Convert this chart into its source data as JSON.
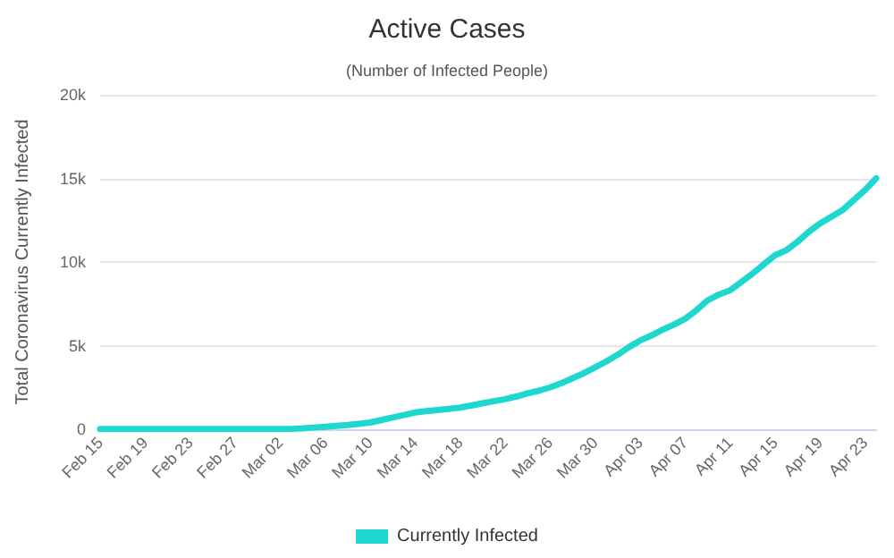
{
  "chart_data": {
    "type": "line",
    "title": "Active Cases",
    "subtitle": "(Number of Infected People)",
    "ylabel": "Total Coronavirus Currently Infected",
    "categories": [
      "Feb 15",
      null,
      null,
      null,
      "Feb 19",
      null,
      null,
      null,
      "Feb 23",
      null,
      null,
      null,
      "Feb 27",
      null,
      null,
      null,
      "Mar 02",
      null,
      null,
      null,
      "Mar 06",
      null,
      null,
      null,
      "Mar 10",
      null,
      null,
      null,
      "Mar 14",
      null,
      null,
      null,
      "Mar 18",
      null,
      null,
      null,
      "Mar 22",
      null,
      null,
      null,
      "Mar 26",
      null,
      null,
      null,
      "Mar 30",
      null,
      null,
      null,
      "Apr 03",
      null,
      null,
      null,
      "Apr 07",
      null,
      null,
      null,
      "Apr 11",
      null,
      null,
      null,
      "Apr 15",
      null,
      null,
      null,
      "Apr 19",
      null,
      null,
      null,
      "Apr 23",
      null
    ],
    "series": [
      {
        "name": "Currently Infected",
        "color": "#1ed8d0",
        "values": [
          10,
          10,
          10,
          10,
          10,
          10,
          10,
          10,
          10,
          10,
          20,
          20,
          20,
          20,
          20,
          20,
          20,
          20,
          50,
          100,
          150,
          200,
          250,
          320,
          400,
          550,
          700,
          850,
          1000,
          1080,
          1150,
          1220,
          1300,
          1420,
          1550,
          1680,
          1800,
          1950,
          2150,
          2300,
          2500,
          2750,
          3050,
          3350,
          3700,
          4050,
          4450,
          4900,
          5300,
          5600,
          5950,
          6250,
          6600,
          7100,
          7700,
          8050,
          8300,
          8800,
          9300,
          9850,
          10400,
          10700,
          11200,
          11800,
          12300,
          12700,
          13100,
          13700,
          14300,
          15000
        ]
      }
    ],
    "ylim": [
      0,
      20000
    ],
    "yticks": [
      0,
      {
        "value": 5000,
        "label": "5k"
      },
      {
        "value": 10000,
        "label": "10k"
      },
      {
        "value": 15000,
        "label": "15k"
      },
      {
        "value": 20000,
        "label": "20k"
      }
    ],
    "grid": "y",
    "legend": "bottom",
    "marker": "none",
    "line_style": "solid"
  }
}
